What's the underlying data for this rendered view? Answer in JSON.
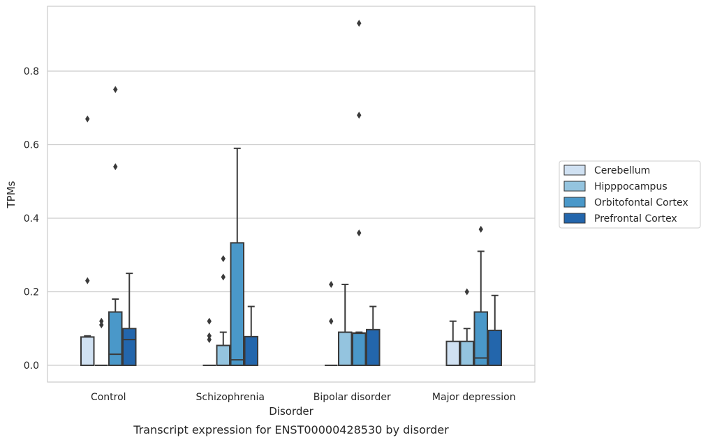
{
  "chart_data": {
    "type": "box",
    "caption": "Transcript expression for ENST00000428530 by disorder",
    "xlabel": "Disorder",
    "ylabel": "TPMs",
    "ylim": [
      -0.045,
      0.98
    ],
    "yticks": [
      0.0,
      0.2,
      0.4,
      0.6,
      0.8
    ],
    "ytick_labels": [
      "0.0",
      "0.2",
      "0.4",
      "0.6",
      "0.8"
    ],
    "grid": true,
    "legend_position": "right",
    "categories": [
      "Control",
      "Schizophrenia",
      "Bipolar disorder",
      "Major depression"
    ],
    "series": [
      {
        "name": "Cerebellum",
        "color": "#d0e1f2",
        "boxes": [
          {
            "q1": 0.0,
            "median": 0.0,
            "q3": 0.077,
            "whisker_low": 0.0,
            "whisker_high": 0.08,
            "outliers": [
              0.23,
              0.67
            ]
          },
          {
            "q1": 0.0,
            "median": 0.0,
            "q3": 0.0,
            "whisker_low": 0.0,
            "whisker_high": 0.0,
            "outliers": [
              0.07,
              0.08,
              0.12
            ]
          },
          {
            "q1": 0.0,
            "median": 0.0,
            "q3": 0.0,
            "whisker_low": 0.0,
            "whisker_high": 0.0,
            "outliers": [
              0.12,
              0.22
            ]
          },
          {
            "q1": 0.0,
            "median": 0.0,
            "q3": 0.065,
            "whisker_low": 0.0,
            "whisker_high": 0.12,
            "outliers": []
          }
        ]
      },
      {
        "name": "Hipppocampus",
        "color": "#94c4df",
        "boxes": [
          {
            "q1": 0.0,
            "median": 0.0,
            "q3": 0.0,
            "whisker_low": 0.0,
            "whisker_high": 0.0,
            "outliers": [
              0.11,
              0.12
            ]
          },
          {
            "q1": 0.0,
            "median": 0.0,
            "q3": 0.054,
            "whisker_low": 0.0,
            "whisker_high": 0.09,
            "outliers": [
              0.24,
              0.29
            ]
          },
          {
            "q1": 0.0,
            "median": 0.0,
            "q3": 0.09,
            "whisker_low": 0.0,
            "whisker_high": 0.22,
            "outliers": []
          },
          {
            "q1": 0.0,
            "median": 0.0,
            "q3": 0.065,
            "whisker_low": 0.0,
            "whisker_high": 0.1,
            "outliers": [
              0.2
            ]
          }
        ]
      },
      {
        "name": "Orbitofontal Cortex",
        "color": "#4a98c9",
        "boxes": [
          {
            "q1": 0.0,
            "median": 0.03,
            "q3": 0.145,
            "whisker_low": 0.0,
            "whisker_high": 0.18,
            "outliers": [
              0.54,
              0.75
            ]
          },
          {
            "q1": 0.0,
            "median": 0.015,
            "q3": 0.333,
            "whisker_low": 0.0,
            "whisker_high": 0.59,
            "outliers": []
          },
          {
            "q1": 0.0,
            "median": 0.087,
            "q3": 0.088,
            "whisker_low": 0.0,
            "whisker_high": 0.09,
            "outliers": [
              0.36,
              0.68,
              0.93
            ]
          },
          {
            "q1": 0.0,
            "median": 0.02,
            "q3": 0.145,
            "whisker_low": 0.0,
            "whisker_high": 0.31,
            "outliers": [
              0.37
            ]
          }
        ]
      },
      {
        "name": "Prefrontal Cortex",
        "color": "#2366ac",
        "boxes": [
          {
            "q1": 0.0,
            "median": 0.07,
            "q3": 0.1,
            "whisker_low": 0.0,
            "whisker_high": 0.25,
            "outliers": []
          },
          {
            "q1": 0.0,
            "median": 0.0,
            "q3": 0.078,
            "whisker_low": 0.0,
            "whisker_high": 0.16,
            "outliers": []
          },
          {
            "q1": 0.0,
            "median": 0.0,
            "q3": 0.097,
            "whisker_low": 0.0,
            "whisker_high": 0.16,
            "outliers": []
          },
          {
            "q1": 0.0,
            "median": 0.0,
            "q3": 0.095,
            "whisker_low": 0.0,
            "whisker_high": 0.19,
            "outliers": []
          }
        ]
      }
    ]
  }
}
